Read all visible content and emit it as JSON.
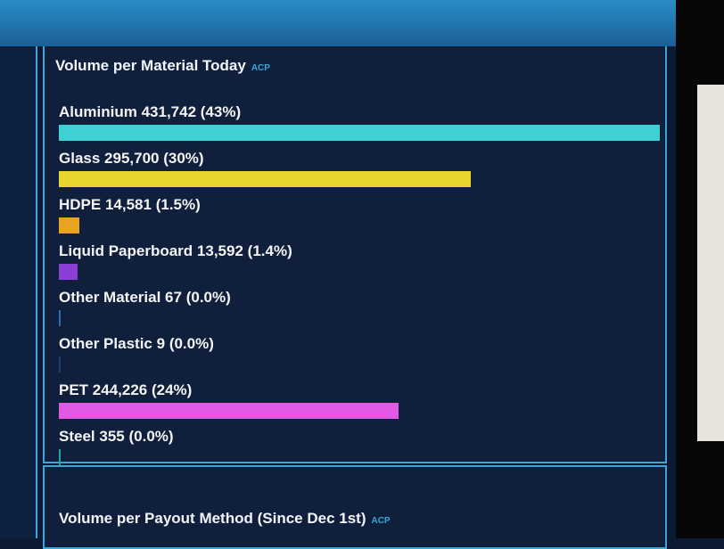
{
  "chart_data": {
    "type": "bar",
    "orientation": "horizontal",
    "title": "Volume per Material Today",
    "title_tag": "ACP",
    "categories": [
      "Aluminium",
      "Glass",
      "HDPE",
      "Liquid Paperboard",
      "Other Material",
      "Other Plastic",
      "PET",
      "Steel"
    ],
    "values": [
      431742,
      295700,
      14581,
      13592,
      67,
      9,
      244226,
      355
    ],
    "value_labels": [
      "431,742",
      "295,700",
      "14,581",
      "13,592",
      "67",
      "9",
      "244,226",
      "355"
    ],
    "share_labels": [
      "(43%)",
      "(30%)",
      "(1.5%)",
      "(1.4%)",
      "(0.0%)",
      "(0.0%)",
      "(24%)",
      "(0.0%)"
    ],
    "colors": [
      "#3fd0d4",
      "#e8d62c",
      "#e9a322",
      "#8b3fd6",
      "#2a6fb6",
      "#1d3f6e",
      "#e25ae4",
      "#2aa3a3"
    ]
  },
  "next_panel": {
    "title": "Volume per Payout Method (Since Dec 1st)",
    "title_tag": "ACP"
  }
}
